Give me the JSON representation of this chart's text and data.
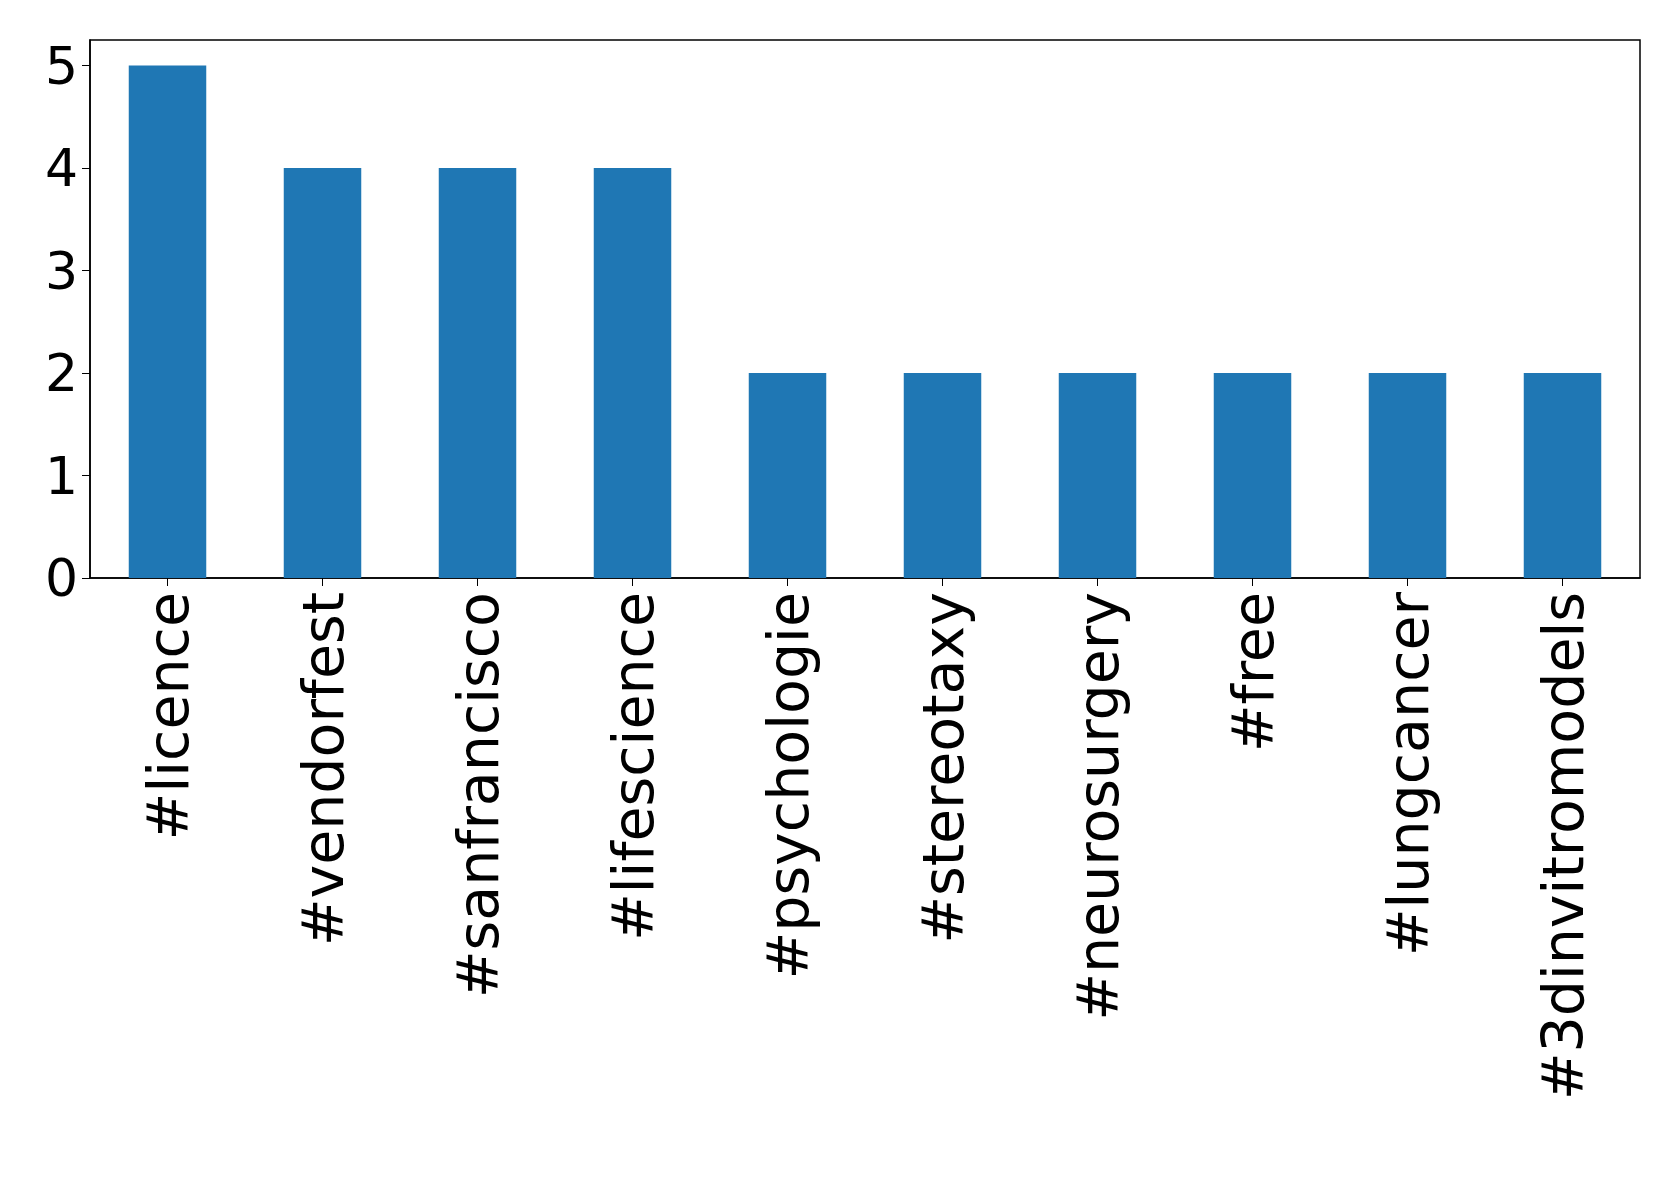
{
  "chart_data": {
    "type": "bar",
    "categories": [
      "#licence",
      "#vendorfest",
      "#sanfrancisco",
      "#lifescience",
      "#psychologie",
      "#stereotaxy",
      "#neurosurgery",
      "#free",
      "#lungcancer",
      "#3dinvitromodels"
    ],
    "values": [
      5,
      4,
      4,
      4,
      2,
      2,
      2,
      2,
      2,
      2
    ],
    "color": "#1f77b4",
    "ylim": [
      0,
      5.25
    ],
    "yticks": [
      0,
      1,
      2,
      3,
      4,
      5
    ],
    "grid": false
  }
}
